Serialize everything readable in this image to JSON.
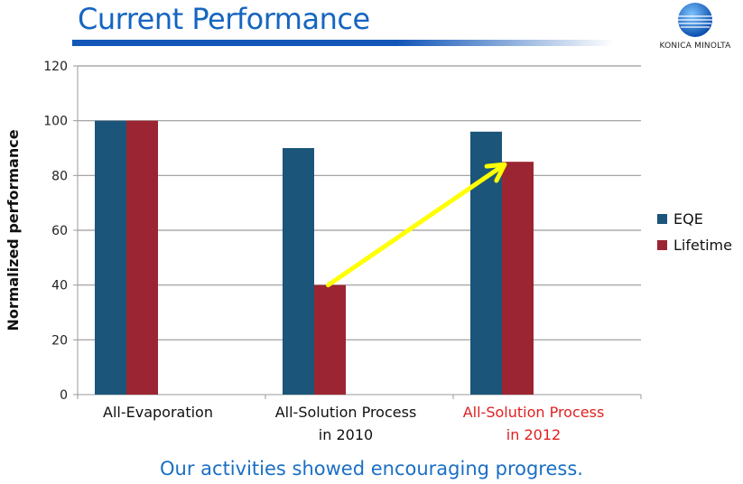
{
  "header": {
    "title": "Current Performance",
    "logo_text": "KONICA MINOLTA"
  },
  "footer": {
    "text": "Our activities showed encouraging progress."
  },
  "colors": {
    "eqe": "#1b5579",
    "lifetime": "#9b2532",
    "arrow": "#ffff00",
    "highlight_label": "#e02020"
  },
  "chart_data": {
    "type": "bar",
    "title": "",
    "xlabel": "",
    "ylabel": "Normalized performance",
    "ylim": [
      0,
      120
    ],
    "yticks": [
      0,
      20,
      40,
      60,
      80,
      100,
      120
    ],
    "grid": true,
    "legend": "right",
    "categories": [
      {
        "lines": [
          "All-Evaporation"
        ],
        "highlight": false
      },
      {
        "lines": [
          "All-Solution Process",
          "in 2010"
        ],
        "highlight": false
      },
      {
        "lines": [
          "All-Solution Process",
          "in 2012"
        ],
        "highlight": true
      }
    ],
    "series": [
      {
        "name": "EQE",
        "values": [
          100,
          90,
          96
        ]
      },
      {
        "name": "Lifetime",
        "values": [
          100,
          40,
          85
        ]
      }
    ],
    "annotation": {
      "type": "arrow",
      "from": {
        "category": 1,
        "series": "Lifetime",
        "value": 40
      },
      "to": {
        "category": 2,
        "series": "Lifetime",
        "value": 85
      }
    }
  }
}
